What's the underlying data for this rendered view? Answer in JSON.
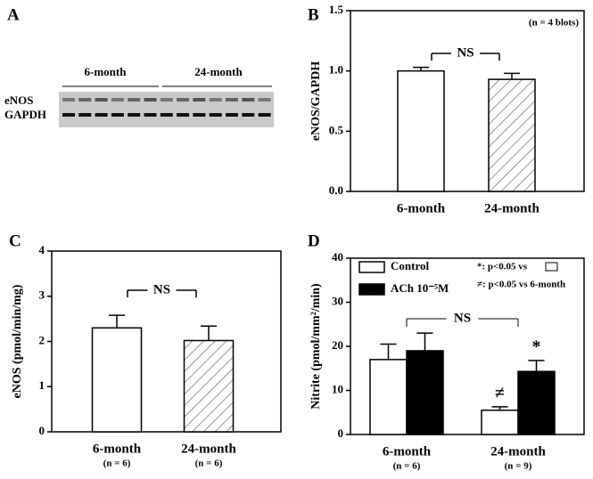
{
  "blot": {
    "panel": "A",
    "groups": [
      "6-month",
      "24-month"
    ],
    "rows": [
      "eNOS",
      "GAPDH"
    ]
  },
  "chart_data": [
    {
      "type": "bar",
      "panel": "B",
      "ylabel": "eNOS/GAPDH",
      "note": "(n = 4 blots)",
      "ns": "NS",
      "categories": [
        "6-month",
        "24-month"
      ],
      "values": [
        1.0,
        0.93
      ],
      "errors": [
        0.03,
        0.05
      ],
      "patterns": [
        "solid",
        "diagonal-hatch"
      ],
      "ylim": [
        0,
        1.5
      ],
      "yticks": [
        {
          "value": 0,
          "label": "0.0"
        },
        0.5,
        {
          "value": 1,
          "label": "1.0"
        },
        1.5
      ]
    },
    {
      "type": "bar",
      "panel": "C",
      "ylabel": "eNOS (pmol/min/mg)",
      "ns": "NS",
      "categories": [
        "6-month",
        "24-month"
      ],
      "n_labels": [
        "(n = 6)",
        "(n = 6)"
      ],
      "values": [
        2.3,
        2.02
      ],
      "errors": [
        0.28,
        0.32
      ],
      "patterns": [
        "solid",
        "diagonal-hatch"
      ],
      "ylim": [
        0,
        4
      ],
      "yticks": [
        0,
        1,
        2,
        3,
        4
      ]
    },
    {
      "type": "grouped-bar",
      "panel": "D",
      "ylabel": "Nitrite (pmol/mm²/min)",
      "ns": "NS",
      "notes": [
        "*: p<0.05 vs",
        "≠: p<0.05 vs 6-month"
      ],
      "categories": [
        "6-month",
        "24-month"
      ],
      "n_labels": [
        "(n = 6)",
        "(n = 9)"
      ],
      "series": [
        {
          "name": "Control",
          "color": "#ffffff",
          "values": [
            17,
            5.5
          ],
          "errors": [
            3.5,
            0.8
          ],
          "markers": [
            null,
            "≠"
          ]
        },
        {
          "name": "ACh 10⁻⁵M",
          "color": "#000000",
          "values": [
            19,
            14.3
          ],
          "errors": [
            4,
            2.5
          ],
          "markers": [
            null,
            "*"
          ]
        }
      ],
      "ylim": [
        0,
        40
      ],
      "yticks": [
        0,
        10,
        20,
        30,
        40
      ]
    }
  ]
}
